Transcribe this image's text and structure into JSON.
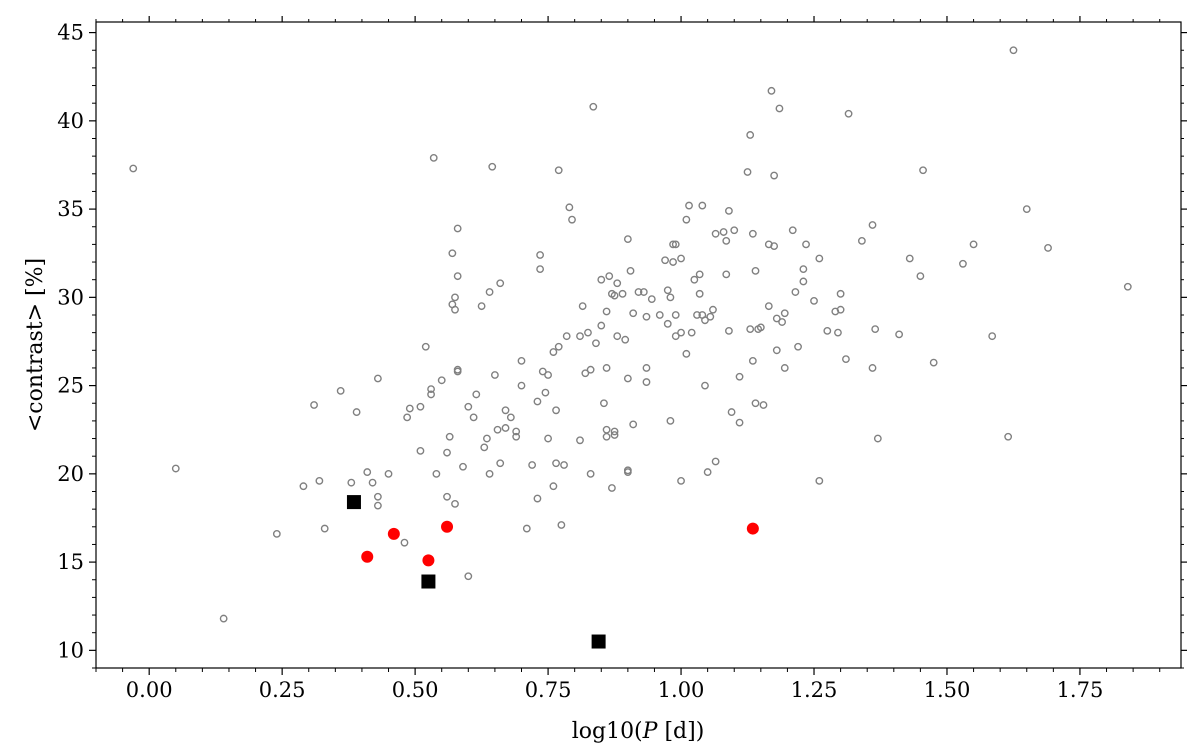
{
  "chart_data": {
    "type": "scatter",
    "xlabel_prefix": "log10(",
    "xlabel_var": "P",
    "xlabel_suffix": " [d])",
    "ylabel": "<contrast> [%]",
    "xlim": [
      -0.1,
      1.94
    ],
    "ylim": [
      9,
      45.6
    ],
    "xticks": [
      0.0,
      0.25,
      0.5,
      0.75,
      1.0,
      1.25,
      1.5,
      1.75
    ],
    "xtick_labels": [
      "0.00",
      "0.25",
      "0.50",
      "0.75",
      "1.00",
      "1.25",
      "1.50",
      "1.75"
    ],
    "yticks": [
      10,
      15,
      20,
      25,
      30,
      35,
      40,
      45
    ],
    "ytick_labels": [
      "10",
      "15",
      "20",
      "25",
      "30",
      "35",
      "40",
      "45"
    ],
    "grid": false,
    "colors": {
      "open_marker": "#808080",
      "red_marker": "#ff0000",
      "square_marker": "#000000"
    },
    "series": [
      {
        "marker": "open-circle",
        "points": [
          [
            -0.03,
            37.3
          ],
          [
            0.05,
            20.3
          ],
          [
            0.14,
            11.8
          ],
          [
            0.24,
            16.6
          ],
          [
            0.29,
            19.3
          ],
          [
            0.31,
            23.9
          ],
          [
            0.32,
            19.6
          ],
          [
            0.33,
            16.9
          ],
          [
            0.36,
            24.7
          ],
          [
            0.38,
            19.5
          ],
          [
            0.39,
            23.5
          ],
          [
            0.41,
            20.1
          ],
          [
            0.42,
            19.5
          ],
          [
            0.43,
            18.2
          ],
          [
            0.43,
            18.7
          ],
          [
            0.43,
            25.4
          ],
          [
            0.45,
            20.0
          ],
          [
            0.48,
            16.1
          ],
          [
            0.485,
            23.2
          ],
          [
            0.49,
            23.7
          ],
          [
            0.51,
            23.8
          ],
          [
            0.51,
            21.3
          ],
          [
            0.52,
            27.2
          ],
          [
            0.53,
            24.8
          ],
          [
            0.53,
            24.5
          ],
          [
            0.535,
            37.9
          ],
          [
            0.54,
            20.0
          ],
          [
            0.55,
            25.3
          ],
          [
            0.56,
            18.7
          ],
          [
            0.56,
            21.2
          ],
          [
            0.565,
            22.1
          ],
          [
            0.57,
            32.5
          ],
          [
            0.57,
            29.6
          ],
          [
            0.575,
            18.3
          ],
          [
            0.575,
            29.3
          ],
          [
            0.575,
            30.0
          ],
          [
            0.58,
            25.9
          ],
          [
            0.58,
            25.8
          ],
          [
            0.58,
            31.2
          ],
          [
            0.58,
            33.9
          ],
          [
            0.59,
            20.4
          ],
          [
            0.6,
            14.2
          ],
          [
            0.6,
            23.8
          ],
          [
            0.61,
            23.2
          ],
          [
            0.615,
            24.5
          ],
          [
            0.625,
            29.5
          ],
          [
            0.63,
            21.5
          ],
          [
            0.635,
            22.0
          ],
          [
            0.64,
            20.0
          ],
          [
            0.64,
            30.3
          ],
          [
            0.645,
            37.4
          ],
          [
            0.65,
            25.6
          ],
          [
            0.655,
            22.5
          ],
          [
            0.66,
            20.6
          ],
          [
            0.66,
            30.8
          ],
          [
            0.67,
            23.6
          ],
          [
            0.67,
            22.6
          ],
          [
            0.68,
            23.2
          ],
          [
            0.69,
            22.1
          ],
          [
            0.69,
            22.4
          ],
          [
            0.7,
            25.0
          ],
          [
            0.7,
            26.4
          ],
          [
            0.71,
            16.9
          ],
          [
            0.72,
            20.5
          ],
          [
            0.73,
            24.1
          ],
          [
            0.73,
            18.6
          ],
          [
            0.735,
            31.6
          ],
          [
            0.735,
            32.4
          ],
          [
            0.74,
            25.8
          ],
          [
            0.745,
            24.6
          ],
          [
            0.75,
            25.6
          ],
          [
            0.75,
            22.0
          ],
          [
            0.76,
            19.3
          ],
          [
            0.76,
            26.9
          ],
          [
            0.765,
            23.6
          ],
          [
            0.765,
            20.6
          ],
          [
            0.77,
            27.2
          ],
          [
            0.77,
            37.2
          ],
          [
            0.775,
            17.1
          ],
          [
            0.78,
            20.5
          ],
          [
            0.785,
            27.8
          ],
          [
            0.79,
            35.1
          ],
          [
            0.795,
            34.4
          ],
          [
            0.81,
            21.9
          ],
          [
            0.81,
            27.8
          ],
          [
            0.815,
            29.5
          ],
          [
            0.82,
            25.7
          ],
          [
            0.825,
            28.0
          ],
          [
            0.83,
            20.0
          ],
          [
            0.83,
            25.9
          ],
          [
            0.835,
            40.8
          ],
          [
            0.84,
            27.4
          ],
          [
            0.85,
            28.4
          ],
          [
            0.85,
            31.0
          ],
          [
            0.855,
            24.0
          ],
          [
            0.86,
            22.5
          ],
          [
            0.86,
            22.1
          ],
          [
            0.86,
            26.0
          ],
          [
            0.86,
            29.2
          ],
          [
            0.865,
            31.2
          ],
          [
            0.87,
            30.2
          ],
          [
            0.87,
            19.2
          ],
          [
            0.875,
            22.4
          ],
          [
            0.875,
            22.2
          ],
          [
            0.875,
            30.1
          ],
          [
            0.88,
            27.8
          ],
          [
            0.88,
            30.8
          ],
          [
            0.89,
            30.2
          ],
          [
            0.895,
            27.6
          ],
          [
            0.9,
            33.3
          ],
          [
            0.9,
            25.4
          ],
          [
            0.9,
            20.2
          ],
          [
            0.9,
            20.1
          ],
          [
            0.905,
            31.5
          ],
          [
            0.91,
            22.8
          ],
          [
            0.91,
            29.1
          ],
          [
            0.92,
            30.3
          ],
          [
            0.93,
            30.3
          ],
          [
            0.935,
            28.9
          ],
          [
            0.935,
            25.2
          ],
          [
            0.935,
            26.0
          ],
          [
            0.945,
            29.9
          ],
          [
            0.96,
            29.0
          ],
          [
            0.97,
            32.1
          ],
          [
            0.975,
            30.4
          ],
          [
            0.975,
            28.5
          ],
          [
            0.98,
            23.0
          ],
          [
            0.98,
            30.0
          ],
          [
            0.985,
            32.0
          ],
          [
            0.985,
            33.0
          ],
          [
            0.99,
            27.8
          ],
          [
            0.99,
            29.0
          ],
          [
            0.99,
            33.0
          ],
          [
            1.0,
            28.0
          ],
          [
            1.0,
            32.2
          ],
          [
            1.0,
            19.6
          ],
          [
            1.01,
            34.4
          ],
          [
            1.01,
            26.8
          ],
          [
            1.015,
            35.2
          ],
          [
            1.02,
            28.0
          ],
          [
            1.025,
            31.0
          ],
          [
            1.03,
            29.0
          ],
          [
            1.035,
            31.3
          ],
          [
            1.035,
            30.2
          ],
          [
            1.04,
            35.2
          ],
          [
            1.04,
            29.0
          ],
          [
            1.045,
            28.7
          ],
          [
            1.045,
            25.0
          ],
          [
            1.05,
            20.1
          ],
          [
            1.055,
            28.9
          ],
          [
            1.06,
            29.3
          ],
          [
            1.065,
            33.6
          ],
          [
            1.065,
            20.7
          ],
          [
            1.08,
            33.7
          ],
          [
            1.085,
            31.3
          ],
          [
            1.085,
            33.2
          ],
          [
            1.09,
            34.9
          ],
          [
            1.09,
            28.1
          ],
          [
            1.095,
            23.5
          ],
          [
            1.1,
            33.8
          ],
          [
            1.11,
            25.5
          ],
          [
            1.11,
            22.9
          ],
          [
            1.125,
            37.1
          ],
          [
            1.13,
            28.2
          ],
          [
            1.13,
            39.2
          ],
          [
            1.135,
            33.6
          ],
          [
            1.135,
            26.4
          ],
          [
            1.14,
            31.5
          ],
          [
            1.14,
            24.0
          ],
          [
            1.145,
            28.2
          ],
          [
            1.15,
            28.3
          ],
          [
            1.155,
            23.9
          ],
          [
            1.165,
            33.0
          ],
          [
            1.165,
            29.5
          ],
          [
            1.17,
            41.7
          ],
          [
            1.175,
            32.9
          ],
          [
            1.175,
            36.9
          ],
          [
            1.18,
            27.0
          ],
          [
            1.18,
            28.8
          ],
          [
            1.185,
            40.7
          ],
          [
            1.19,
            28.6
          ],
          [
            1.195,
            29.1
          ],
          [
            1.195,
            26.0
          ],
          [
            1.21,
            33.8
          ],
          [
            1.215,
            30.3
          ],
          [
            1.22,
            27.2
          ],
          [
            1.23,
            30.9
          ],
          [
            1.23,
            31.6
          ],
          [
            1.235,
            33.0
          ],
          [
            1.25,
            29.8
          ],
          [
            1.26,
            19.6
          ],
          [
            1.26,
            32.2
          ],
          [
            1.275,
            28.1
          ],
          [
            1.29,
            29.2
          ],
          [
            1.295,
            28.0
          ],
          [
            1.3,
            29.3
          ],
          [
            1.3,
            30.2
          ],
          [
            1.31,
            26.5
          ],
          [
            1.315,
            40.4
          ],
          [
            1.34,
            33.2
          ],
          [
            1.36,
            34.1
          ],
          [
            1.36,
            26.0
          ],
          [
            1.365,
            28.2
          ],
          [
            1.37,
            22.0
          ],
          [
            1.41,
            27.9
          ],
          [
            1.43,
            32.2
          ],
          [
            1.45,
            31.2
          ],
          [
            1.455,
            37.2
          ],
          [
            1.475,
            26.3
          ],
          [
            1.53,
            31.9
          ],
          [
            1.55,
            33.0
          ],
          [
            1.585,
            27.8
          ],
          [
            1.615,
            22.1
          ],
          [
            1.625,
            44.0
          ],
          [
            1.65,
            35.0
          ],
          [
            1.69,
            32.8
          ],
          [
            1.84,
            30.6
          ]
        ]
      },
      {
        "marker": "red-circle",
        "points": [
          [
            0.41,
            15.3
          ],
          [
            0.46,
            16.6
          ],
          [
            0.525,
            15.1
          ],
          [
            0.56,
            17.0
          ],
          [
            1.135,
            16.9
          ]
        ]
      },
      {
        "marker": "black-square",
        "points": [
          [
            0.385,
            18.4
          ],
          [
            0.525,
            13.9
          ],
          [
            0.845,
            10.5
          ]
        ]
      }
    ]
  }
}
